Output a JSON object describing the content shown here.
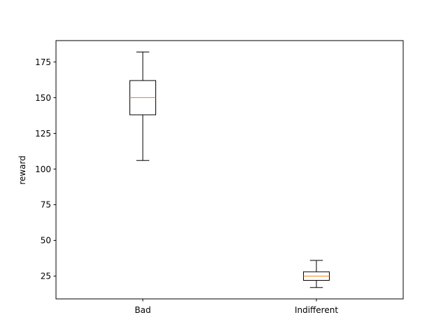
{
  "chart_data": {
    "type": "boxplot",
    "title": "",
    "xlabel": "",
    "ylabel": "reward",
    "ylim": [
      9,
      190
    ],
    "yticks": [
      25,
      50,
      75,
      100,
      125,
      150,
      175
    ],
    "grid": false,
    "categories": [
      "Bad",
      "Indifferent"
    ],
    "boxes": [
      {
        "name": "Bad",
        "whisker_low": 106,
        "q1": 138,
        "median": 150,
        "q3": 162,
        "whisker_high": 182
      },
      {
        "name": "Indifferent",
        "whisker_low": 17,
        "q1": 22,
        "median": 25,
        "q3": 28,
        "whisker_high": 36
      }
    ],
    "colors": {
      "box": "#000000",
      "median": "#ff7f0e",
      "axes": "#000000"
    }
  }
}
